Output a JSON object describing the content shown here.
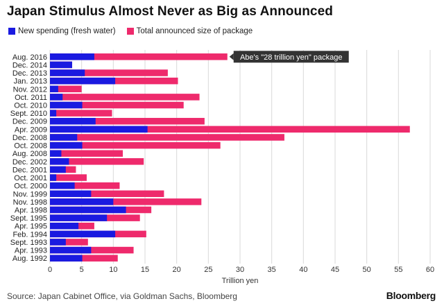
{
  "title": "Japan Stimulus Almost Never as Big as Announced",
  "source": "Source: Japan Cabinet Office, via Goldman Sachs, Bloomberg",
  "brand": "Bloomberg",
  "colors": {
    "new_spending": "#1a1ae0",
    "total": "#ee2a6c",
    "grid": "#d9d9d9",
    "callout_bg": "#333333",
    "callout_text": "#ffffff"
  },
  "chart_data": {
    "type": "bar",
    "orientation": "horizontal",
    "overlapping": true,
    "title": "Japan Stimulus Almost Never as Big as Announced",
    "xlabel": "Trillion yen",
    "ylabel": "",
    "xlim": [
      0,
      60
    ],
    "xticks": [
      0,
      5,
      10,
      15,
      20,
      25,
      30,
      35,
      40,
      45,
      50,
      55,
      60
    ],
    "grid": true,
    "legend_position": "top-left",
    "categories": [
      "Aug. 2016",
      "Dec. 2014",
      "Dec. 2013",
      "Jan. 2013",
      "Nov. 2012",
      "Oct. 2011",
      "Oct. 2010",
      "Sept. 2010",
      "Dec. 2009",
      "Apr. 2009",
      "Dec. 2008",
      "Oct. 2008",
      "Aug. 2008",
      "Dec. 2002",
      "Dec. 2001",
      "Oct. 2001",
      "Oct. 2000",
      "Nov. 1999",
      "Nov. 1998",
      "Apr. 1998",
      "Sept. 1995",
      "Apr. 1995",
      "Feb. 1994",
      "Sept. 1993",
      "Apr. 1993",
      "Aug. 1992"
    ],
    "series": [
      {
        "name": "Total announced size of package",
        "color": "#ee2a6c",
        "values": [
          28.0,
          3.5,
          18.6,
          20.2,
          5.0,
          23.6,
          21.1,
          9.8,
          24.4,
          56.8,
          37.0,
          26.9,
          11.5,
          14.8,
          4.1,
          5.8,
          11.0,
          18.0,
          23.9,
          16.0,
          14.2,
          7.0,
          15.2,
          6.0,
          13.2,
          10.7
        ]
      },
      {
        "name": "New spending (fresh water)",
        "color": "#1a1ae0",
        "values": [
          7.0,
          3.5,
          5.5,
          10.3,
          1.3,
          2.0,
          5.1,
          1.0,
          7.2,
          15.4,
          4.3,
          5.1,
          1.8,
          3.0,
          2.5,
          1.0,
          3.9,
          6.5,
          10.0,
          12.0,
          9.0,
          4.5,
          10.3,
          2.5,
          6.5,
          5.1
        ]
      }
    ],
    "annotations": [
      {
        "text": "Abe's \"28 trillion yen\" package",
        "category": "Aug. 2016"
      }
    ]
  }
}
